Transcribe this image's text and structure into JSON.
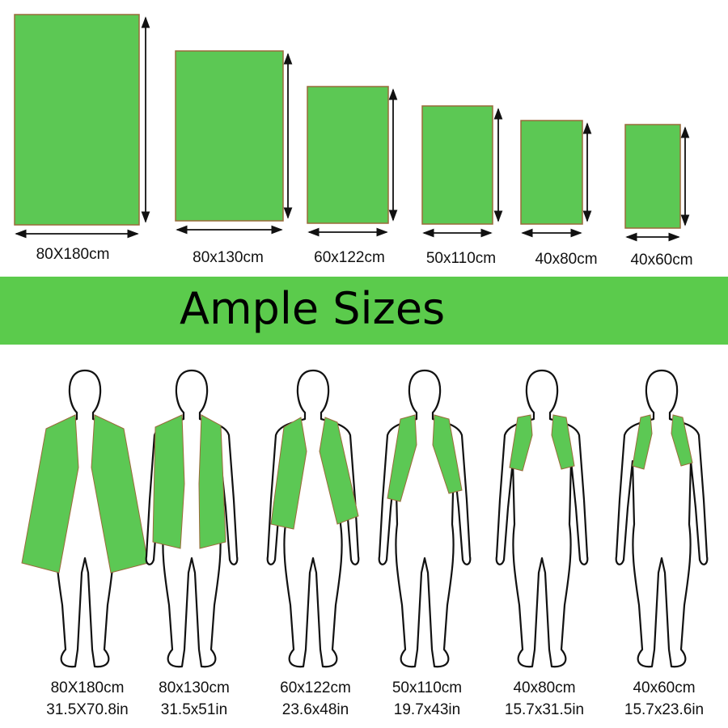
{
  "colors": {
    "towel_green": "#5cc854",
    "towel_border": "#9a6a3a",
    "banner_green": "#5bcb4c",
    "outline": "#111111"
  },
  "banner": {
    "title": "Ample Sizes"
  },
  "top_sizes": [
    {
      "label": "80X180cm"
    },
    {
      "label": "80x130cm"
    },
    {
      "label": "60x122cm"
    },
    {
      "label": "50x110cm"
    },
    {
      "label": "40x80cm"
    },
    {
      "label": "40x60cm"
    }
  ],
  "figures": [
    {
      "cm": "80X180cm",
      "inch": "31.5X70.8in"
    },
    {
      "cm": "80x130cm",
      "inch": "31.5x51in"
    },
    {
      "cm": "60x122cm",
      "inch": "23.6x48in"
    },
    {
      "cm": "50x110cm",
      "inch": "19.7x43in"
    },
    {
      "cm": "40x80cm",
      "inch": "15.7x31.5in"
    },
    {
      "cm": "40x60cm",
      "inch": "15.7x23.6in"
    }
  ]
}
